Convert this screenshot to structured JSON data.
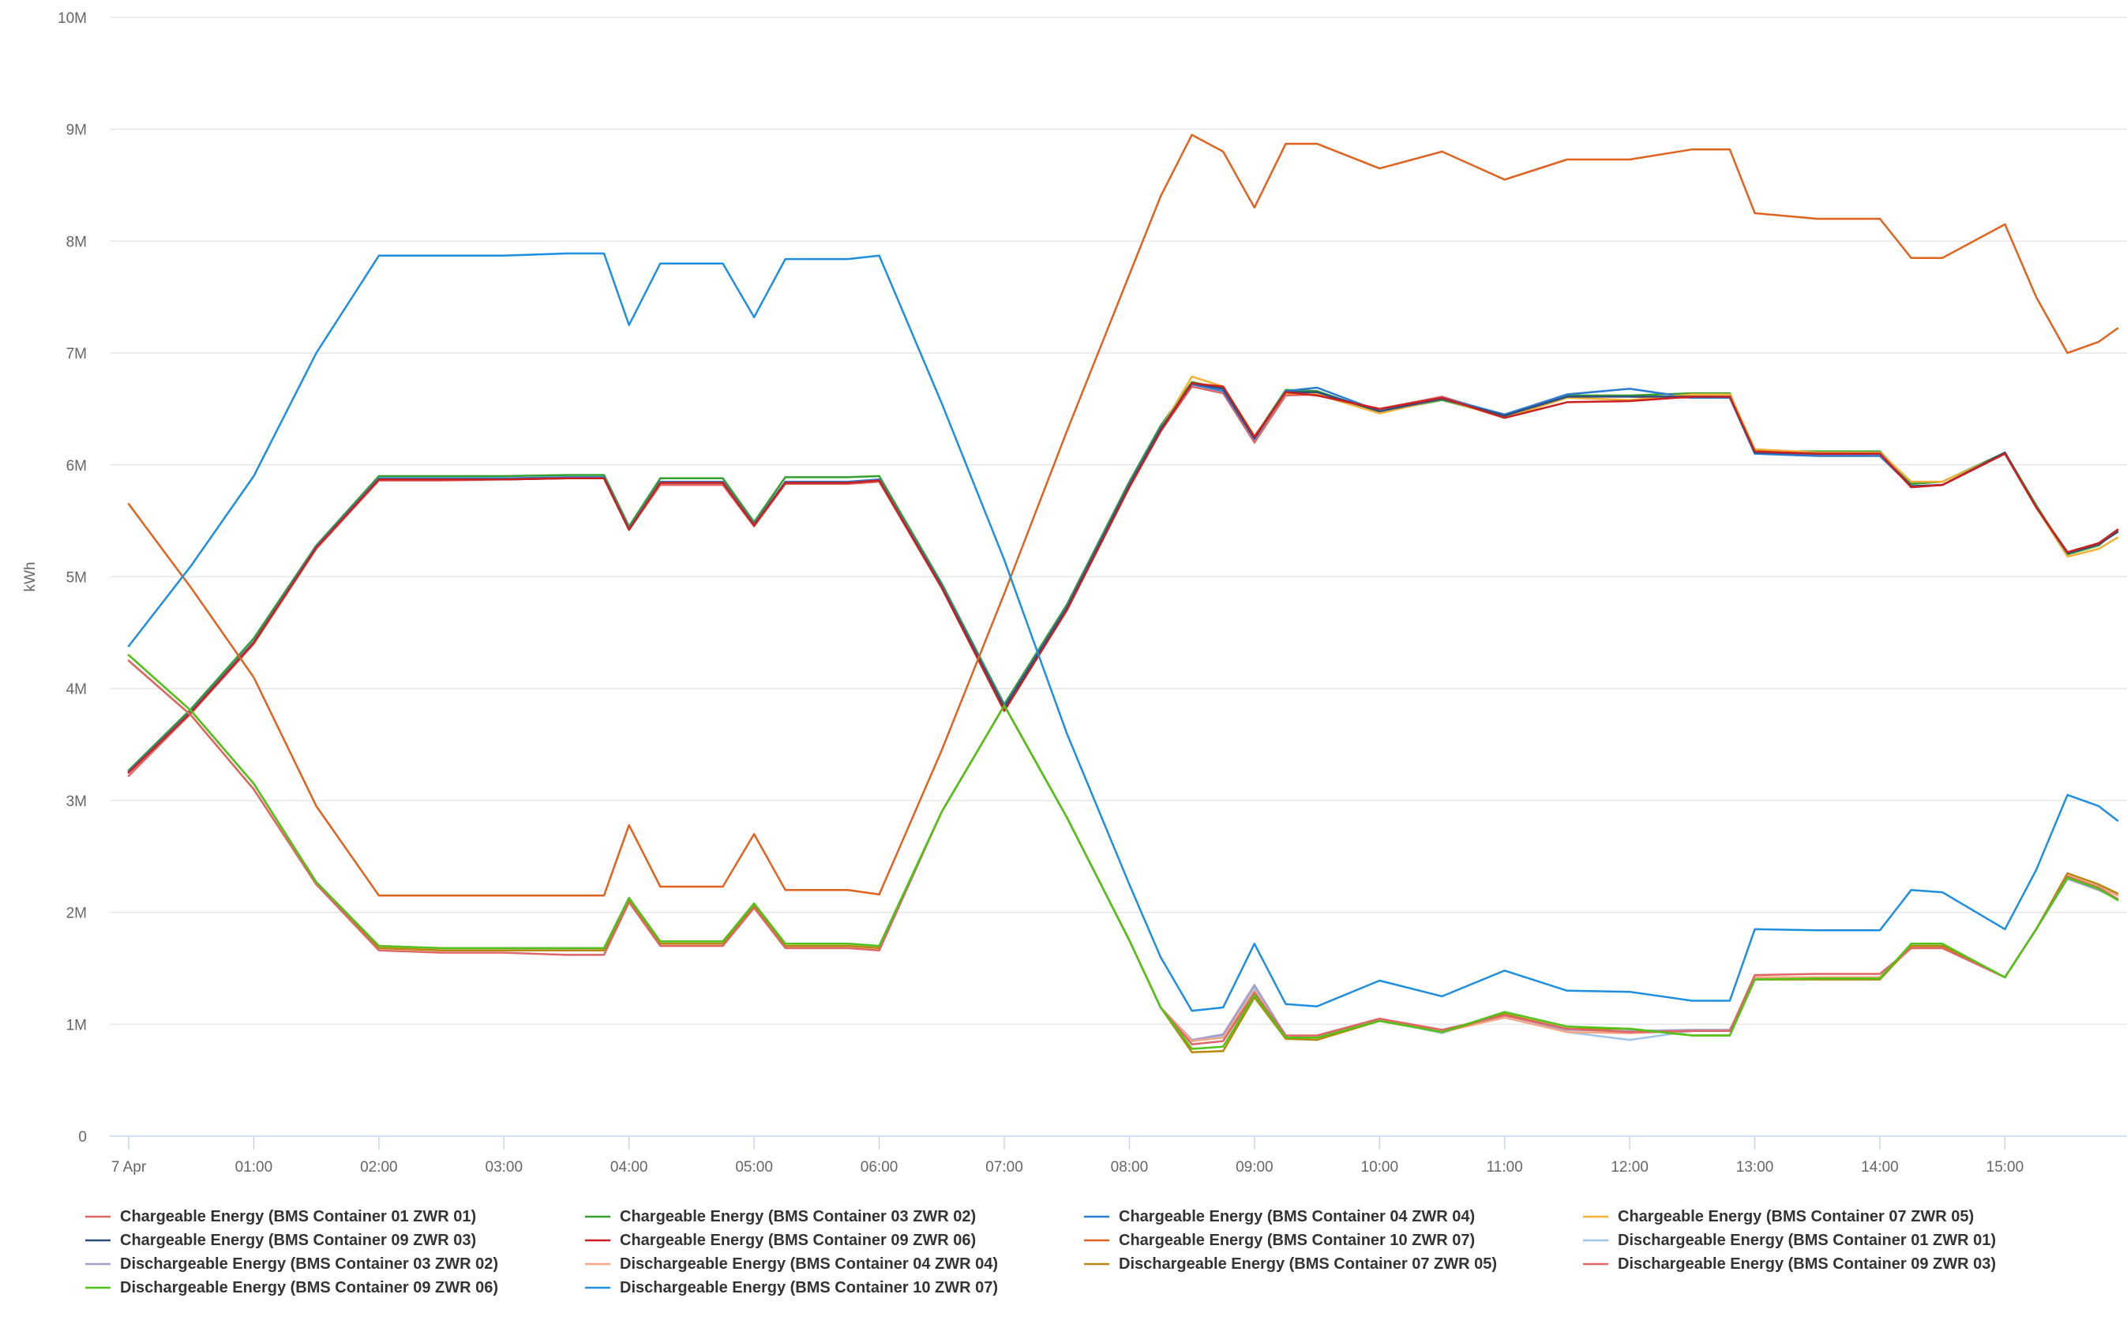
{
  "chart_data": {
    "type": "line",
    "ylabel": "kWh",
    "xlim": [
      0,
      15.9
    ],
    "ylim": [
      0,
      10000000
    ],
    "yticks": [
      {
        "value": 0,
        "label": "0"
      },
      {
        "value": 1000000,
        "label": "1M"
      },
      {
        "value": 2000000,
        "label": "2M"
      },
      {
        "value": 3000000,
        "label": "3M"
      },
      {
        "value": 4000000,
        "label": "4M"
      },
      {
        "value": 5000000,
        "label": "5M"
      },
      {
        "value": 6000000,
        "label": "6M"
      },
      {
        "value": 7000000,
        "label": "7M"
      },
      {
        "value": 8000000,
        "label": "8M"
      },
      {
        "value": 9000000,
        "label": "9M"
      },
      {
        "value": 10000000,
        "label": "10M"
      }
    ],
    "xticks": [
      {
        "value": 0,
        "label": "7 Apr"
      },
      {
        "value": 1,
        "label": "01:00"
      },
      {
        "value": 2,
        "label": "02:00"
      },
      {
        "value": 3,
        "label": "03:00"
      },
      {
        "value": 4,
        "label": "04:00"
      },
      {
        "value": 5,
        "label": "05:00"
      },
      {
        "value": 6,
        "label": "06:00"
      },
      {
        "value": 7,
        "label": "07:00"
      },
      {
        "value": 8,
        "label": "08:00"
      },
      {
        "value": 9,
        "label": "09:00"
      },
      {
        "value": 10,
        "label": "10:00"
      },
      {
        "value": 11,
        "label": "11:00"
      },
      {
        "value": 12,
        "label": "12:00"
      },
      {
        "value": 13,
        "label": "13:00"
      },
      {
        "value": 14,
        "label": "14:00"
      },
      {
        "value": 15,
        "label": "15:00"
      }
    ],
    "x": [
      0,
      0.5,
      1.0,
      1.5,
      2.0,
      2.5,
      3.0,
      3.5,
      3.8,
      4.0,
      4.25,
      4.5,
      4.75,
      5.0,
      5.25,
      5.5,
      5.75,
      6.0,
      6.5,
      7.0,
      7.5,
      8.0,
      8.25,
      8.5,
      8.75,
      9.0,
      9.25,
      9.5,
      10.0,
      10.5,
      11.0,
      11.5,
      12.0,
      12.5,
      12.8,
      13.0,
      13.5,
      14.0,
      14.25,
      14.5,
      15.0,
      15.25,
      15.5,
      15.75,
      15.9
    ],
    "series": [
      {
        "name": "Chargeable Energy (BMS Container 01 ZWR 01)",
        "color": "#e06666",
        "values": [
          3220000,
          3780000,
          4400000,
          5250000,
          5860000,
          5860000,
          5870000,
          5880000,
          5880000,
          5420000,
          5820000,
          5820000,
          5820000,
          5450000,
          5830000,
          5830000,
          5830000,
          5850000,
          4900000,
          3820000,
          4700000,
          5800000,
          6300000,
          6700000,
          6640000,
          6200000,
          6620000,
          6630000,
          6500000,
          6610000,
          6440000,
          6620000,
          6610000,
          6600000,
          6600000,
          6110000,
          6090000,
          6080000,
          5810000,
          5820000,
          6100000,
          5620000,
          5210000,
          5300000,
          5400000
        ]
      },
      {
        "name": "Chargeable Energy (BMS Container 03 ZWR 02)",
        "color": "#33a02c",
        "values": [
          3270000,
          3820000,
          4450000,
          5280000,
          5900000,
          5900000,
          5900000,
          5910000,
          5910000,
          5450000,
          5880000,
          5880000,
          5880000,
          5490000,
          5890000,
          5890000,
          5890000,
          5900000,
          4940000,
          3860000,
          4750000,
          5850000,
          6350000,
          6740000,
          6680000,
          6250000,
          6670000,
          6660000,
          6470000,
          6580000,
          6430000,
          6620000,
          6620000,
          6640000,
          6640000,
          6120000,
          6120000,
          6120000,
          5830000,
          5850000,
          6110000,
          5640000,
          5200000,
          5280000,
          5420000
        ]
      },
      {
        "name": "Chargeable Energy (BMS Container 04 ZWR 04)",
        "color": "#2b7bd4",
        "values": [
          3260000,
          3800000,
          4420000,
          5270000,
          5880000,
          5880000,
          5880000,
          5890000,
          5890000,
          5430000,
          5850000,
          5850000,
          5850000,
          5470000,
          5850000,
          5850000,
          5850000,
          5870000,
          4920000,
          3840000,
          4730000,
          5830000,
          6330000,
          6720000,
          6660000,
          6230000,
          6660000,
          6690000,
          6480000,
          6600000,
          6450000,
          6630000,
          6680000,
          6600000,
          6600000,
          6100000,
          6080000,
          6080000,
          5810000,
          5820000,
          6100000,
          5620000,
          5210000,
          5300000,
          5420000
        ]
      },
      {
        "name": "Chargeable Energy (BMS Container 07 ZWR 05)",
        "color": "#f2b134",
        "values": [
          3250000,
          3790000,
          4410000,
          5260000,
          5870000,
          5870000,
          5870000,
          5880000,
          5880000,
          5420000,
          5840000,
          5840000,
          5840000,
          5460000,
          5840000,
          5840000,
          5840000,
          5860000,
          4910000,
          3830000,
          4720000,
          5820000,
          6320000,
          6790000,
          6700000,
          6260000,
          6640000,
          6630000,
          6460000,
          6590000,
          6420000,
          6600000,
          6580000,
          6630000,
          6630000,
          6140000,
          6110000,
          6110000,
          5850000,
          5850000,
          6100000,
          5620000,
          5180000,
          5250000,
          5350000
        ]
      },
      {
        "name": "Chargeable Energy (BMS Container 09 ZWR 03)",
        "color": "#2e4e7e",
        "values": [
          3250000,
          3790000,
          4410000,
          5260000,
          5870000,
          5870000,
          5870000,
          5880000,
          5880000,
          5420000,
          5840000,
          5840000,
          5840000,
          5460000,
          5840000,
          5840000,
          5840000,
          5860000,
          4910000,
          3830000,
          4720000,
          5820000,
          6320000,
          6730000,
          6680000,
          6240000,
          6650000,
          6650000,
          6480000,
          6590000,
          6440000,
          6610000,
          6610000,
          6610000,
          6610000,
          6110000,
          6100000,
          6100000,
          5810000,
          5820000,
          6110000,
          5620000,
          5210000,
          5290000,
          5400000
        ]
      },
      {
        "name": "Chargeable Energy (BMS Container 09 ZWR 06)",
        "color": "#cc1f1f",
        "values": [
          3250000,
          3790000,
          4410000,
          5260000,
          5870000,
          5870000,
          5870000,
          5880000,
          5880000,
          5420000,
          5840000,
          5840000,
          5840000,
          5460000,
          5840000,
          5840000,
          5840000,
          5860000,
          4900000,
          3800000,
          4700000,
          5800000,
          6300000,
          6730000,
          6700000,
          6250000,
          6650000,
          6620000,
          6500000,
          6600000,
          6420000,
          6560000,
          6570000,
          6610000,
          6610000,
          6120000,
          6100000,
          6100000,
          5800000,
          5820000,
          6100000,
          5620000,
          5220000,
          5300000,
          5420000
        ]
      },
      {
        "name": "Chargeable Energy (BMS Container 10 ZWR 07)",
        "color": "#e0621f",
        "values": [
          5650000,
          4900000,
          4100000,
          2950000,
          2150000,
          2150000,
          2150000,
          2150000,
          2150000,
          2780000,
          2230000,
          2230000,
          2230000,
          2700000,
          2200000,
          2200000,
          2200000,
          2160000,
          3450000,
          4850000,
          6300000,
          7700000,
          8400000,
          8950000,
          8800000,
          8300000,
          8870000,
          8870000,
          8650000,
          8800000,
          8550000,
          8730000,
          8730000,
          8820000,
          8820000,
          8250000,
          8200000,
          8200000,
          7850000,
          7850000,
          8150000,
          7500000,
          7000000,
          7100000,
          7220000
        ]
      },
      {
        "name": "Dischargeable Energy (BMS Container 01 ZWR 01)",
        "color": "#9ec5ea",
        "values": [
          4300000,
          3800000,
          3150000,
          2270000,
          1700000,
          1680000,
          1680000,
          1680000,
          1680000,
          2130000,
          1740000,
          1740000,
          1740000,
          2080000,
          1720000,
          1720000,
          1720000,
          1700000,
          2900000,
          3850000,
          2850000,
          1750000,
          1150000,
          850000,
          900000,
          1330000,
          900000,
          880000,
          1040000,
          920000,
          1100000,
          930000,
          860000,
          940000,
          940000,
          1400000,
          1420000,
          1420000,
          1700000,
          1700000,
          1420000,
          1850000,
          2300000,
          2200000,
          2120000
        ]
      },
      {
        "name": "Dischargeable Energy (BMS Container 03 ZWR 02)",
        "color": "#a89cc8",
        "values": [
          4300000,
          3800000,
          3150000,
          2270000,
          1700000,
          1680000,
          1680000,
          1680000,
          1680000,
          2130000,
          1740000,
          1740000,
          1740000,
          2080000,
          1720000,
          1720000,
          1720000,
          1700000,
          2900000,
          3850000,
          2850000,
          1750000,
          1150000,
          860000,
          910000,
          1350000,
          900000,
          890000,
          1030000,
          930000,
          1080000,
          950000,
          940000,
          950000,
          950000,
          1400000,
          1420000,
          1420000,
          1700000,
          1700000,
          1420000,
          1850000,
          2300000,
          2200000,
          2120000
        ]
      },
      {
        "name": "Dischargeable Energy (BMS Container 04 ZWR 04)",
        "color": "#f4a582",
        "values": [
          4300000,
          3800000,
          3150000,
          2270000,
          1700000,
          1660000,
          1660000,
          1660000,
          1660000,
          2110000,
          1720000,
          1720000,
          1720000,
          2060000,
          1700000,
          1700000,
          1700000,
          1680000,
          2900000,
          3850000,
          2850000,
          1750000,
          1150000,
          850000,
          880000,
          1300000,
          890000,
          890000,
          1050000,
          930000,
          1060000,
          930000,
          920000,
          940000,
          940000,
          1420000,
          1420000,
          1420000,
          1680000,
          1680000,
          1420000,
          1850000,
          2330000,
          2230000,
          2150000
        ]
      },
      {
        "name": "Dischargeable Energy (BMS Container 07 ZWR 05)",
        "color": "#b8860b",
        "values": [
          4250000,
          3760000,
          3100000,
          2250000,
          1680000,
          1660000,
          1660000,
          1660000,
          1660000,
          2110000,
          1720000,
          1720000,
          1720000,
          2060000,
          1700000,
          1700000,
          1700000,
          1680000,
          2900000,
          3850000,
          2850000,
          1750000,
          1150000,
          750000,
          760000,
          1240000,
          870000,
          860000,
          1030000,
          930000,
          1090000,
          960000,
          960000,
          900000,
          900000,
          1400000,
          1400000,
          1400000,
          1700000,
          1700000,
          1420000,
          1850000,
          2350000,
          2250000,
          2170000
        ]
      },
      {
        "name": "Dischargeable Energy (BMS Container 09 ZWR 03)",
        "color": "#e06666",
        "values": [
          4250000,
          3760000,
          3100000,
          2250000,
          1660000,
          1640000,
          1640000,
          1620000,
          1620000,
          2090000,
          1700000,
          1700000,
          1700000,
          2040000,
          1680000,
          1680000,
          1680000,
          1660000,
          2900000,
          3850000,
          2850000,
          1750000,
          1150000,
          820000,
          850000,
          1280000,
          900000,
          900000,
          1050000,
          950000,
          1080000,
          960000,
          930000,
          940000,
          940000,
          1440000,
          1450000,
          1450000,
          1680000,
          1680000,
          1420000,
          1850000,
          2320000,
          2220000,
          2120000
        ]
      },
      {
        "name": "Dischargeable Energy (BMS Container 09 ZWR 06)",
        "color": "#4fc416",
        "values": [
          4300000,
          3800000,
          3150000,
          2270000,
          1700000,
          1680000,
          1680000,
          1680000,
          1680000,
          2130000,
          1740000,
          1740000,
          1740000,
          2080000,
          1720000,
          1720000,
          1720000,
          1700000,
          2900000,
          3850000,
          2850000,
          1750000,
          1150000,
          780000,
          800000,
          1260000,
          880000,
          880000,
          1030000,
          930000,
          1110000,
          980000,
          960000,
          900000,
          900000,
          1400000,
          1410000,
          1410000,
          1720000,
          1720000,
          1420000,
          1850000,
          2310000,
          2210000,
          2110000
        ]
      },
      {
        "name": "Dischargeable Energy (BMS Container 10 ZWR 07)",
        "color": "#1e8fe0",
        "values": [
          4380000,
          5100000,
          5900000,
          7000000,
          7870000,
          7870000,
          7870000,
          7890000,
          7890000,
          7250000,
          7800000,
          7800000,
          7800000,
          7320000,
          7840000,
          7840000,
          7840000,
          7870000,
          6550000,
          5150000,
          3600000,
          2250000,
          1600000,
          1120000,
          1150000,
          1720000,
          1180000,
          1160000,
          1390000,
          1250000,
          1480000,
          1300000,
          1290000,
          1210000,
          1210000,
          1850000,
          1840000,
          1840000,
          2200000,
          2180000,
          1850000,
          2380000,
          3050000,
          2950000,
          2820000
        ]
      }
    ]
  }
}
